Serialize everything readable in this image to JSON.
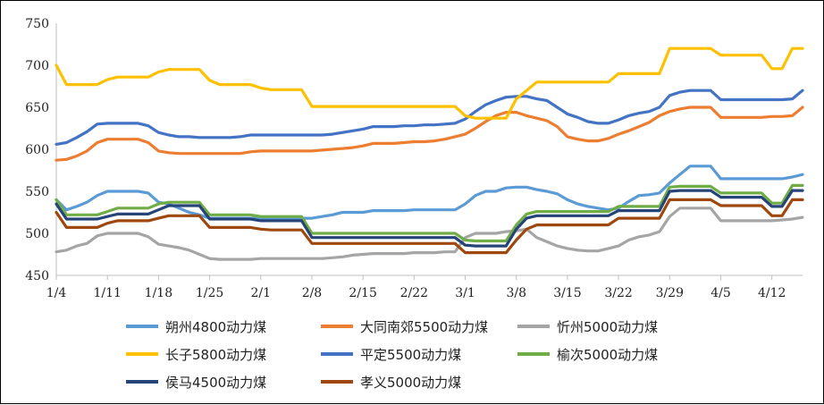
{
  "chart_data": {
    "type": "line",
    "x": [
      "1/4",
      "1/5",
      "1/6",
      "1/7",
      "1/8",
      "1/11",
      "1/12",
      "1/13",
      "1/14",
      "1/15",
      "1/18",
      "1/19",
      "1/20",
      "1/21",
      "1/22",
      "1/25",
      "1/26",
      "1/27",
      "1/28",
      "1/29",
      "2/1",
      "2/2",
      "2/3",
      "2/4",
      "2/5",
      "2/8",
      "2/9",
      "2/10",
      "2/11",
      "2/12",
      "2/15",
      "2/16",
      "2/17",
      "2/18",
      "2/19",
      "2/22",
      "2/23",
      "2/24",
      "2/25",
      "2/26",
      "3/1",
      "3/2",
      "3/3",
      "3/4",
      "3/5",
      "3/8",
      "3/9",
      "3/10",
      "3/11",
      "3/12",
      "3/15",
      "3/16",
      "3/17",
      "3/18",
      "3/19",
      "3/22",
      "3/23",
      "3/24",
      "3/25",
      "3/26",
      "3/29",
      "3/30",
      "3/31",
      "4/1",
      "4/2",
      "4/5",
      "4/6",
      "4/7",
      "4/8",
      "4/9",
      "4/12",
      "4/13",
      "4/14",
      "4/15"
    ],
    "x_ticks": [
      "1/4",
      "1/11",
      "1/18",
      "1/25",
      "2/1",
      "2/8",
      "2/15",
      "2/22",
      "3/1",
      "3/8",
      "3/15",
      "3/22",
      "3/29",
      "4/5",
      "4/12"
    ],
    "ylim": [
      450,
      750
    ],
    "y_ticks": [
      450,
      500,
      550,
      600,
      650,
      700,
      750
    ],
    "grid": false,
    "legend_position": "bottom",
    "series": [
      {
        "name": "朔州4800动力煤",
        "color": "#5b9bd5",
        "values": [
          540,
          528,
          532,
          537,
          545,
          550,
          550,
          550,
          550,
          548,
          537,
          535,
          530,
          525,
          522,
          518,
          518,
          518,
          518,
          518,
          518,
          518,
          518,
          518,
          518,
          518,
          520,
          522,
          525,
          525,
          525,
          527,
          527,
          527,
          527,
          528,
          528,
          528,
          528,
          528,
          535,
          545,
          550,
          550,
          554,
          555,
          555,
          552,
          550,
          547,
          540,
          535,
          532,
          530,
          528,
          530,
          538,
          545,
          546,
          548,
          560,
          570,
          580,
          580,
          580,
          565,
          565,
          565,
          565,
          565,
          565,
          565,
          567,
          570
        ]
      },
      {
        "name": "大同南郊5500动力煤",
        "color": "#ed7d31",
        "values": [
          587,
          588,
          592,
          598,
          608,
          612,
          612,
          612,
          612,
          608,
          598,
          596,
          595,
          595,
          595,
          595,
          595,
          595,
          595,
          597,
          598,
          598,
          598,
          598,
          598,
          598,
          599,
          600,
          601,
          602,
          604,
          607,
          607,
          607,
          608,
          609,
          609,
          610,
          612,
          615,
          618,
          625,
          633,
          640,
          644,
          644,
          640,
          637,
          634,
          627,
          615,
          612,
          610,
          610,
          613,
          618,
          622,
          627,
          632,
          640,
          645,
          648,
          650,
          650,
          650,
          638,
          638,
          638,
          638,
          638,
          639,
          639,
          640,
          650
        ]
      },
      {
        "name": "忻州5000动力煤",
        "color": "#a5a5a5",
        "values": [
          478,
          480,
          485,
          488,
          497,
          500,
          500,
          500,
          500,
          496,
          487,
          485,
          483,
          480,
          475,
          470,
          469,
          469,
          469,
          469,
          470,
          470,
          470,
          470,
          470,
          470,
          470,
          471,
          472,
          474,
          475,
          476,
          476,
          476,
          476,
          477,
          477,
          477,
          478,
          478,
          495,
          500,
          500,
          500,
          502,
          503,
          505,
          495,
          490,
          485,
          482,
          480,
          479,
          479,
          482,
          485,
          492,
          496,
          498,
          502,
          520,
          530,
          530,
          530,
          530,
          515,
          515,
          515,
          515,
          515,
          515,
          516,
          517,
          519
        ]
      },
      {
        "name": "长子5800动力煤",
        "color": "#ffc000",
        "values": [
          700,
          677,
          677,
          677,
          677,
          683,
          686,
          686,
          686,
          686,
          692,
          695,
          695,
          695,
          695,
          682,
          677,
          677,
          677,
          677,
          673,
          671,
          671,
          671,
          671,
          651,
          651,
          651,
          651,
          651,
          651,
          651,
          651,
          651,
          651,
          651,
          651,
          651,
          651,
          651,
          640,
          637,
          637,
          637,
          637,
          660,
          670,
          680,
          680,
          680,
          680,
          680,
          680,
          680,
          680,
          690,
          690,
          690,
          690,
          690,
          720,
          720,
          720,
          720,
          720,
          712,
          712,
          712,
          712,
          712,
          696,
          696,
          720,
          720
        ]
      },
      {
        "name": "平定5500动力煤",
        "color": "#4472c4",
        "values": [
          606,
          608,
          614,
          621,
          630,
          631,
          631,
          631,
          631,
          628,
          620,
          617,
          615,
          615,
          614,
          614,
          614,
          614,
          615,
          617,
          617,
          617,
          617,
          617,
          617,
          617,
          617,
          618,
          620,
          622,
          624,
          627,
          627,
          627,
          628,
          628,
          629,
          629,
          630,
          631,
          636,
          645,
          653,
          658,
          662,
          663,
          663,
          660,
          658,
          650,
          642,
          638,
          633,
          631,
          631,
          635,
          640,
          643,
          645,
          650,
          664,
          668,
          670,
          670,
          670,
          659,
          659,
          659,
          659,
          659,
          659,
          659,
          660,
          670
        ]
      },
      {
        "name": "榆次5000动力煤",
        "color": "#70ad47",
        "values": [
          540,
          522,
          522,
          522,
          522,
          526,
          530,
          530,
          530,
          530,
          535,
          537,
          537,
          537,
          537,
          522,
          522,
          522,
          522,
          522,
          520,
          520,
          520,
          520,
          520,
          500,
          500,
          500,
          500,
          500,
          500,
          500,
          500,
          500,
          500,
          500,
          500,
          500,
          500,
          500,
          492,
          491,
          491,
          491,
          491,
          510,
          523,
          526,
          526,
          526,
          526,
          526,
          526,
          526,
          526,
          532,
          532,
          532,
          532,
          532,
          555,
          556,
          556,
          556,
          556,
          548,
          548,
          548,
          548,
          548,
          536,
          536,
          557,
          557
        ]
      },
      {
        "name": "侯马4500动力煤",
        "color": "#264478",
        "values": [
          535,
          517,
          517,
          517,
          517,
          520,
          523,
          523,
          523,
          523,
          528,
          533,
          533,
          533,
          533,
          517,
          517,
          517,
          517,
          517,
          515,
          515,
          515,
          515,
          515,
          495,
          495,
          495,
          495,
          495,
          495,
          495,
          495,
          495,
          495,
          495,
          495,
          495,
          495,
          495,
          486,
          485,
          485,
          485,
          485,
          505,
          518,
          521,
          521,
          521,
          521,
          521,
          521,
          521,
          521,
          527,
          527,
          527,
          527,
          527,
          550,
          551,
          551,
          551,
          551,
          543,
          543,
          543,
          543,
          543,
          532,
          532,
          551,
          551
        ]
      },
      {
        "name": "孝义5000动力煤",
        "color": "#9e480e",
        "values": [
          525,
          507,
          507,
          507,
          507,
          512,
          515,
          515,
          515,
          515,
          518,
          521,
          521,
          521,
          521,
          507,
          507,
          507,
          507,
          507,
          505,
          504,
          504,
          504,
          504,
          488,
          488,
          488,
          488,
          488,
          488,
          488,
          488,
          488,
          488,
          488,
          488,
          488,
          488,
          488,
          477,
          477,
          477,
          477,
          477,
          492,
          505,
          510,
          510,
          510,
          510,
          510,
          510,
          510,
          510,
          518,
          518,
          518,
          518,
          518,
          540,
          540,
          540,
          540,
          540,
          533,
          533,
          533,
          533,
          533,
          521,
          521,
          540,
          540
        ]
      }
    ]
  }
}
